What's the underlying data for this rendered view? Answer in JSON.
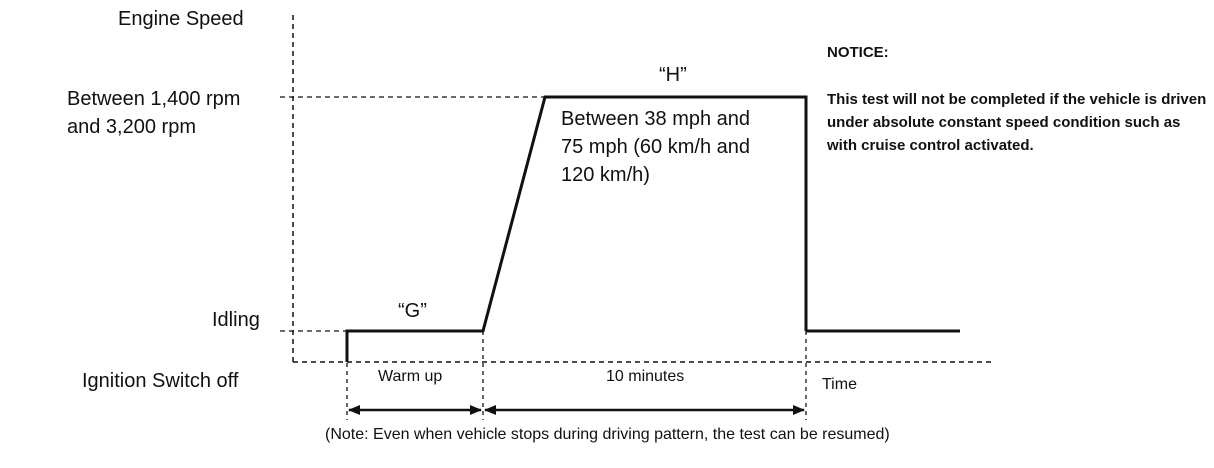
{
  "y_axis": {
    "title": "Engine Speed",
    "level_high_line1": "Between 1,400 rpm",
    "level_high_line2": "and 3,200 rpm",
    "level_idle": "Idling",
    "level_off": "Ignition Switch off"
  },
  "x_axis": {
    "title": "Time"
  },
  "phases": {
    "g_label": "“G”",
    "h_label": "“H”",
    "warm_up": "Warm up",
    "ten_minutes": "10 minutes",
    "speed_range_line1": "Between 38 mph and",
    "speed_range_line2": "75 mph (60 km/h and",
    "speed_range_line3": "120 km/h)"
  },
  "note": "(Note: Even when vehicle stops during driving pattern, the test can be resumed)",
  "notice": {
    "title": "NOTICE:",
    "body": "This test will not be completed if the vehicle is driven under absolute constant speed condition such as with cruise control activated."
  }
}
